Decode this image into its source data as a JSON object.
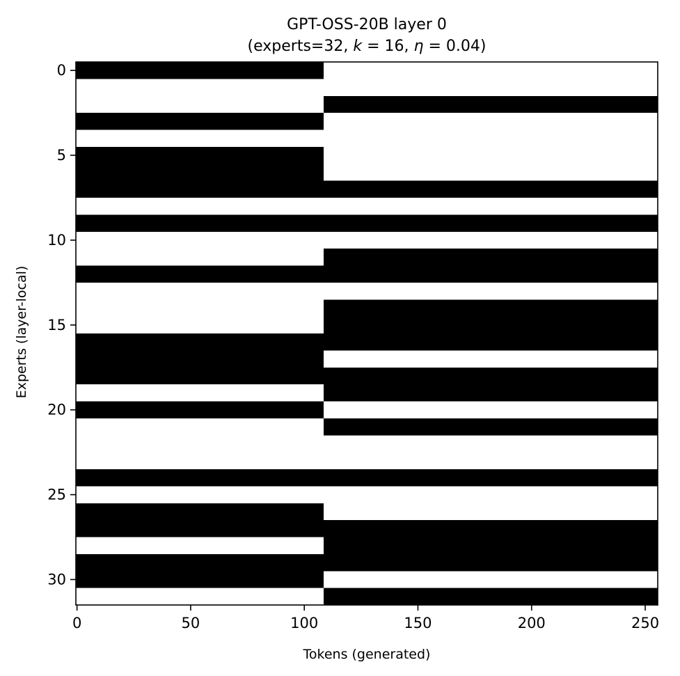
{
  "chart_data": {
    "type": "heatmap",
    "title_line1": "GPT-OSS-20B layer 0",
    "title_line2_prefix": "(experts=32, ",
    "title_k_symbol": "k",
    "title_k_value": " = 16, ",
    "title_eta_symbol": "η",
    "title_eta_value": " = 0.04)",
    "xlabel": "Tokens (generated)",
    "ylabel": "Experts (layer-local)",
    "xlim": [
      0,
      255
    ],
    "ylim": [
      0,
      31
    ],
    "y_inverted": true,
    "x_ticks": [
      0,
      50,
      100,
      150,
      200,
      250
    ],
    "y_ticks": [
      0,
      5,
      10,
      15,
      20,
      25,
      30
    ],
    "n_experts": 32,
    "n_tokens": 256,
    "segments": [
      {
        "token_start": 0,
        "token_end": 109,
        "active_experts": [
          0,
          3,
          5,
          6,
          7,
          9,
          12,
          16,
          17,
          18,
          20,
          24,
          26,
          27,
          29,
          30
        ]
      },
      {
        "token_start": 109,
        "token_end": 256,
        "active_experts": [
          2,
          7,
          9,
          11,
          12,
          14,
          15,
          16,
          18,
          19,
          21,
          24,
          27,
          28,
          29,
          31
        ]
      }
    ],
    "colors": {
      "active": "#000000",
      "inactive": "#ffffff"
    }
  }
}
